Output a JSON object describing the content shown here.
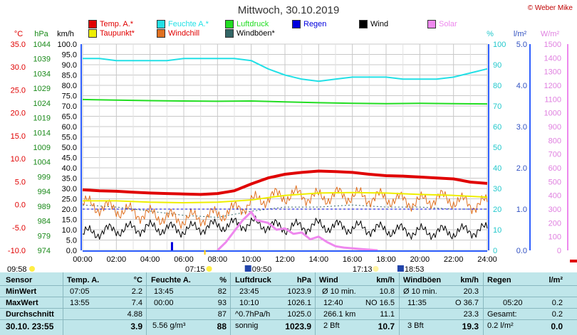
{
  "title": "Mittwoch, 30.10.2019",
  "copyright": "© Weber Mike",
  "legend": [
    {
      "label": "Temp. A.*",
      "color": "#e00000"
    },
    {
      "label": "Feuchte A.*",
      "color": "#22e0e6"
    },
    {
      "label": "Luftdruck",
      "color": "#22dd22"
    },
    {
      "label": "Regen",
      "color": "#0000dd"
    },
    {
      "label": "Wind",
      "color": "#000000"
    },
    {
      "label": "Solar",
      "color": "#ee88ee"
    },
    {
      "label": "Taupunkt*",
      "color": "#eeee00"
    },
    {
      "label": "Windchill",
      "color": "#e07020"
    },
    {
      "label": "Windböen*",
      "color": "#336666"
    }
  ],
  "axis_units": {
    "temp": "°C",
    "pressure": "hPa",
    "wind": "km/h",
    "humidity": "%",
    "rain": "l/m²",
    "solar": "W/m²"
  },
  "colors": {
    "temp": "#e00000",
    "humidity": "#22e0e6",
    "pressure": "#22dd22",
    "rain": "#0000dd",
    "wind": "#000000",
    "solar": "#ee88ee",
    "dew": "#eeee00",
    "windchill": "#e07020",
    "gust": "#336666",
    "axis": "#3060ff"
  },
  "chart_data": {
    "type": "line",
    "x_ticks": [
      "00:00",
      "02:00",
      "04:00",
      "06:00",
      "08:00",
      "10:00",
      "12:00",
      "14:00",
      "16:00",
      "18:00",
      "20:00",
      "22:00",
      "24:00"
    ],
    "wind_axis": {
      "ticks": [
        "100.0",
        "95.0",
        "90.0",
        "85.0",
        "80.0",
        "75.0",
        "70.0",
        "65.0",
        "60.0",
        "55.0",
        "50.0",
        "45.0",
        "40.0",
        "35.0",
        "30.0",
        "25.0",
        "20.0",
        "15.0",
        "10.0",
        "5.0",
        "0.0"
      ],
      "ylim": [
        0,
        100
      ]
    },
    "temp_axis": {
      "ticks": [
        "35.0",
        "30.0",
        "25.0",
        "20.0",
        "15.0",
        "10.0",
        "5.0",
        "0.0",
        "-5.0",
        "-10.0"
      ],
      "ylim": [
        -10,
        35
      ]
    },
    "pressure_axis": {
      "ticks": [
        "1044",
        "1039",
        "1034",
        "1029",
        "1024",
        "1019",
        "1014",
        "1009",
        "1004",
        "999",
        "994",
        "989",
        "984",
        "979",
        "974"
      ],
      "ylim": [
        974,
        1044
      ]
    },
    "humidity_axis": {
      "ticks": [
        "100",
        "90",
        "80",
        "70",
        "60",
        "50",
        "40",
        "30",
        "20",
        "10",
        "0"
      ],
      "ylim": [
        0,
        100
      ]
    },
    "rain_axis": {
      "ticks": [
        "5.0",
        "4.0",
        "3.0",
        "2.0",
        "1.0",
        "0.0"
      ],
      "ylim": [
        0,
        5
      ]
    },
    "solar_axis": {
      "ticks": [
        "1500",
        "1400",
        "1300",
        "1200",
        "1100",
        "1000",
        "900",
        "800",
        "700",
        "600",
        "500",
        "400",
        "300",
        "200",
        "100",
        "0"
      ],
      "ylim": [
        0,
        1500
      ]
    },
    "series": [
      {
        "name": "Temp. A.*",
        "x": [
          0,
          1,
          2,
          3,
          4,
          5,
          6,
          7,
          8,
          9,
          10,
          11,
          12,
          13,
          14,
          15,
          16,
          17,
          18,
          19,
          20,
          21,
          22,
          23,
          24
        ],
        "values": [
          3.2,
          3.0,
          2.9,
          2.7,
          2.5,
          2.4,
          2.3,
          2.2,
          2.4,
          3.0,
          4.5,
          5.8,
          6.6,
          7.0,
          7.3,
          7.2,
          7.0,
          6.6,
          6.3,
          6.2,
          6.0,
          5.8,
          5.6,
          4.9,
          4.6
        ]
      },
      {
        "name": "Feuchte A.*",
        "x": [
          0,
          1,
          2,
          3,
          4,
          5,
          6,
          7,
          8,
          9,
          10,
          11,
          12,
          13,
          14,
          15,
          16,
          17,
          18,
          19,
          20,
          21,
          22,
          23,
          24
        ],
        "values": [
          93,
          93,
          92,
          92,
          92,
          92,
          93,
          93,
          93,
          93,
          92,
          88,
          85,
          83,
          82,
          83,
          84,
          84,
          84,
          83,
          83,
          83,
          84,
          86,
          88
        ]
      },
      {
        "name": "Luftdruck",
        "x": [
          0,
          2,
          4,
          6,
          8,
          10,
          12,
          14,
          16,
          18,
          20,
          22,
          24
        ],
        "values": [
          1025.2,
          1025.0,
          1024.8,
          1024.7,
          1024.6,
          1024.7,
          1024.4,
          1024.1,
          1023.9,
          1023.8,
          1023.9,
          1023.8,
          1023.7
        ]
      },
      {
        "name": "Taupunkt*",
        "x": [
          0,
          2,
          4,
          6,
          8,
          10,
          12,
          14,
          16,
          18,
          20,
          22,
          24
        ],
        "values": [
          0.8,
          0.8,
          0.5,
          0.4,
          0.5,
          1.0,
          2.0,
          2.5,
          2.6,
          2.5,
          2.2,
          2.0,
          1.6
        ]
      },
      {
        "name": "Windchill",
        "x": [
          0,
          1,
          2,
          3,
          4,
          5,
          6,
          7,
          8,
          9,
          10,
          11,
          12,
          13,
          14,
          15,
          16,
          17,
          18,
          19,
          20,
          21,
          22,
          23,
          24
        ],
        "values": [
          0.2,
          -0.5,
          -1.0,
          -1.8,
          -2.2,
          -2.8,
          -3.2,
          -2.8,
          -2.2,
          -1.2,
          0.5,
          1.5,
          2.0,
          2.0,
          1.5,
          2.0,
          2.0,
          1.5,
          1.5,
          0.8,
          0.5,
          1.5,
          1.0,
          0.0,
          0.2
        ]
      },
      {
        "name": "Wind",
        "x": [
          0,
          2,
          4,
          6,
          8,
          10,
          12,
          14,
          16,
          18,
          20,
          22,
          24
        ],
        "values": [
          8,
          10,
          11,
          10,
          12,
          13,
          11,
          12,
          11,
          10,
          9,
          9,
          10
        ]
      },
      {
        "name": "Windböen*",
        "x": [
          0,
          2,
          4,
          6,
          8,
          10,
          12,
          14,
          16,
          18,
          20,
          22,
          24
        ],
        "values": [
          22,
          21,
          19,
          17,
          16,
          19,
          21,
          21,
          22,
          21,
          21,
          20,
          20
        ]
      },
      {
        "name": "Solar",
        "x": [
          8.0,
          8.5,
          9.0,
          9.5,
          10.0,
          10.3,
          11.0,
          11.5,
          12.0,
          12.5,
          13.0,
          13.5,
          14.0,
          14.5,
          15.0,
          15.5,
          16.0,
          16.5,
          17.0,
          17.5
        ],
        "values": [
          0,
          60,
          140,
          220,
          280,
          220,
          200,
          150,
          160,
          120,
          130,
          80,
          100,
          60,
          30,
          20,
          15,
          10,
          5,
          0
        ]
      }
    ],
    "rain_marker": {
      "time": 5.3,
      "value": 0.2
    },
    "annotations": {
      "sunrise": "07:15",
      "sunset": "17:13",
      "moonrise": "09:50",
      "moonset": "18:53",
      "daylength": "09:58"
    }
  },
  "stats": {
    "row_labels": [
      "Sensor",
      "MinWert",
      "MaxWert",
      "Durchschnitt",
      "30.10. 23:55"
    ],
    "temp": {
      "header": "Temp. A.",
      "unit": "°C",
      "min_time": "07:05",
      "min": "2.2",
      "max_time": "13:55",
      "max": "7.4",
      "avg": "4.88",
      "current": "3.9"
    },
    "humidity": {
      "header": "Feuchte A.",
      "unit": "%",
      "min_time": "13:45",
      "min": "82",
      "max_time": "00:00",
      "max": "93",
      "avg": "87",
      "extra": "5.56 g/m³",
      "current": "88"
    },
    "pressure": {
      "header": "Luftdruck",
      "unit": "hPa",
      "min_time": "23:45",
      "min": "1023.9",
      "max_time": "10:10",
      "max": "1026.1",
      "trend": "^0.7hPa/h",
      "avg": "1025.0",
      "forecast": "sonnig",
      "current": "1023.9"
    },
    "wind": {
      "header": "Wind",
      "unit": "km/h",
      "row1_label": "Ø 10 min.",
      "row1_value": "10.8",
      "row2_time": "12:40",
      "row2_dir": "NO 16.5",
      "row3_label": "266.1 km",
      "row3_value": "11.1",
      "bft": "2 Bft",
      "current": "10.7"
    },
    "gust": {
      "header": "Windböen",
      "unit": "km/h",
      "row1_label": "Ø 10 min.",
      "row1_value": "20.3",
      "row2_time": "11:35",
      "row2_dir": "O 36.7",
      "avg": "23.3",
      "bft": "3 Bft",
      "current": "19.3"
    },
    "rain": {
      "header": "Regen",
      "unit": "l/m²",
      "max_time": "05:20",
      "max": "0.2",
      "total_label": "Gesamt:",
      "total": "0.2",
      "rate": "0.2 l/m²",
      "current": "0.0"
    }
  }
}
